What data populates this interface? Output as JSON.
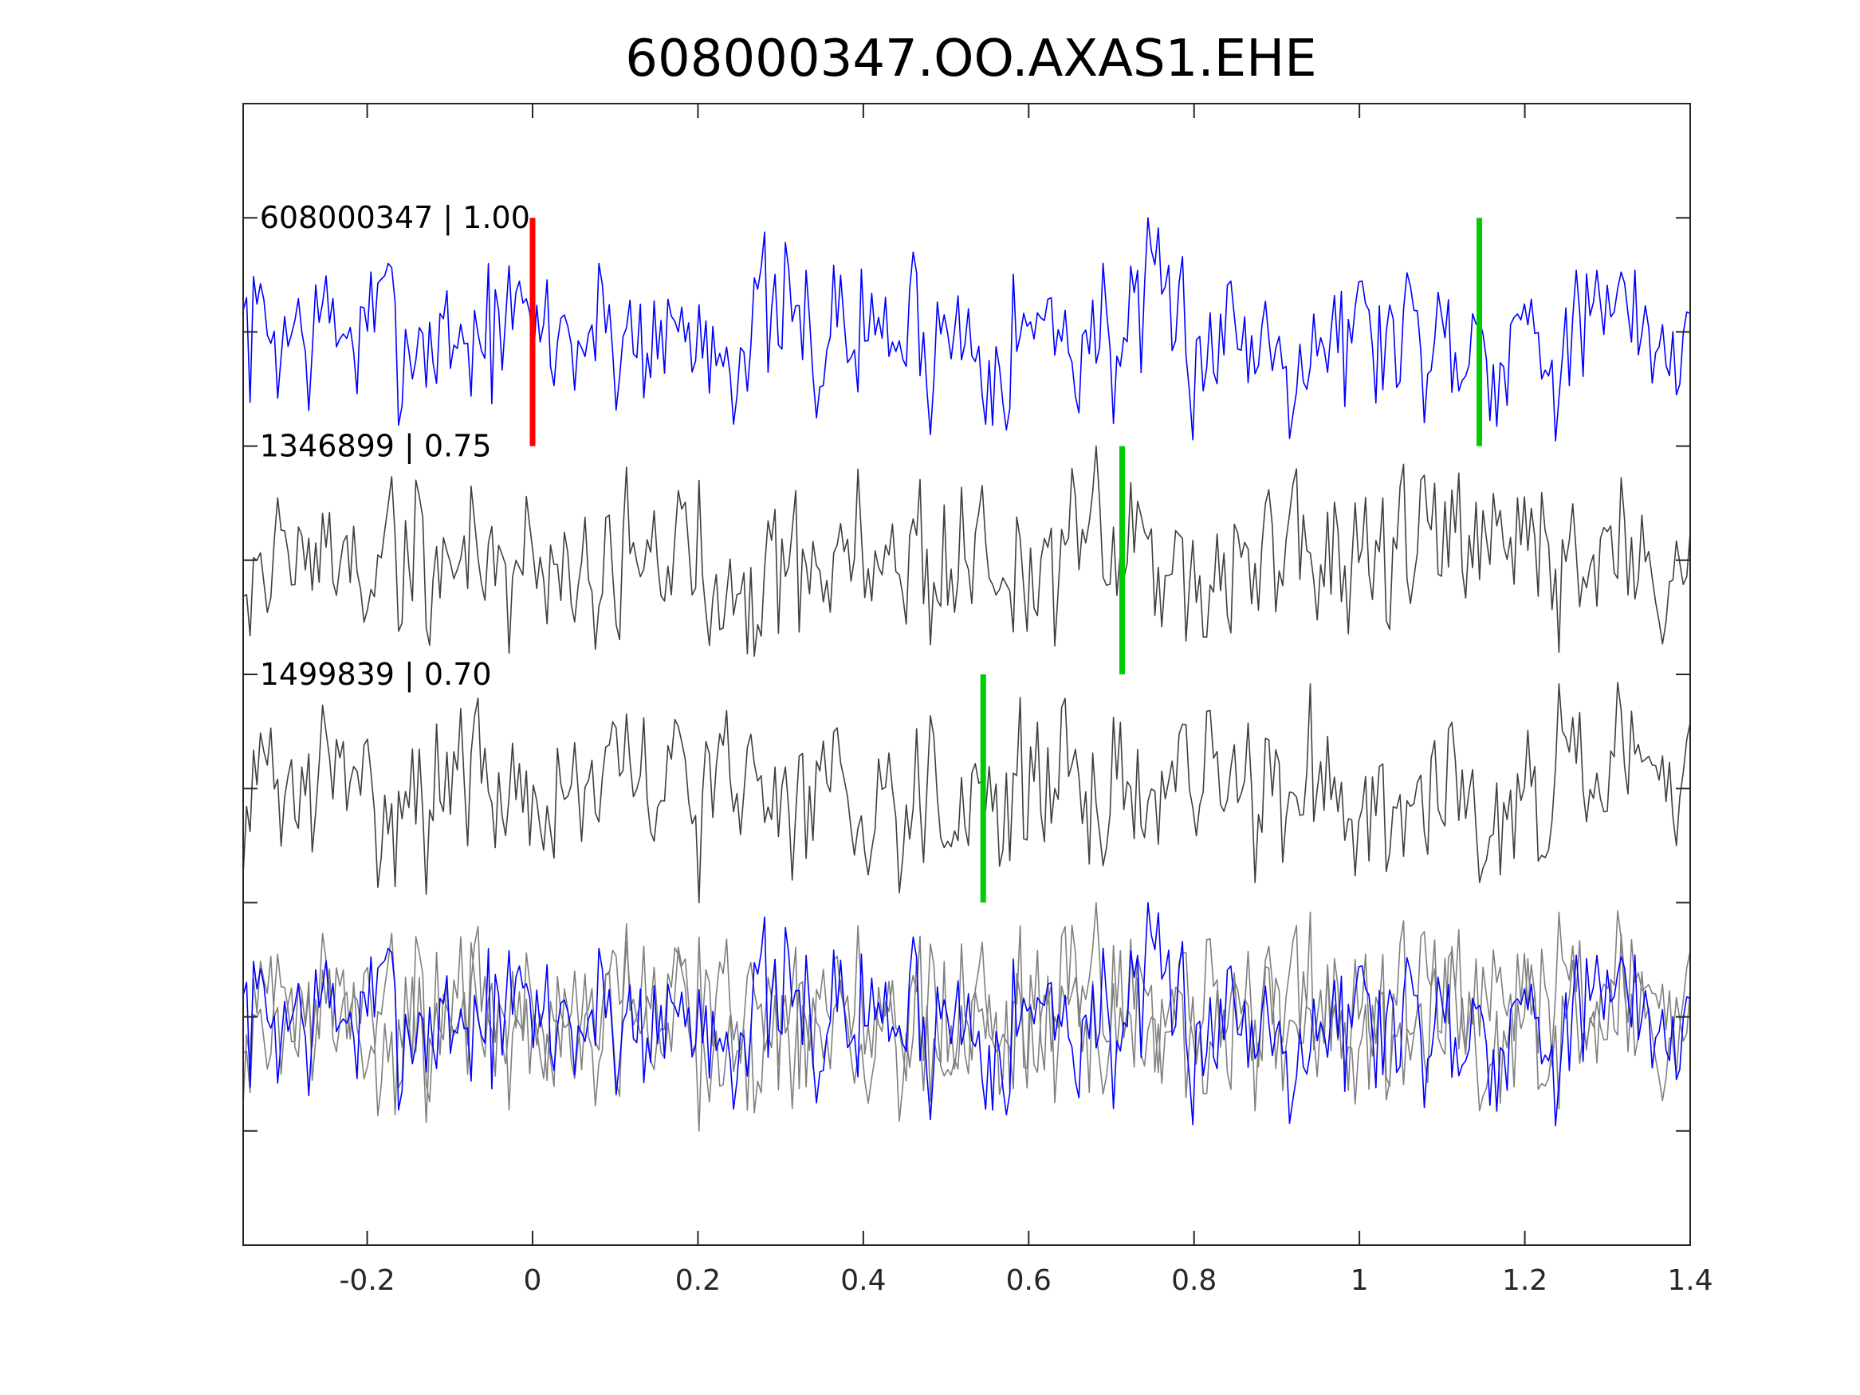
{
  "chart_data": {
    "type": "line",
    "title": "608000347.OO.AXAS1.EHE",
    "xlabel": "",
    "ylabel": "",
    "xlim": [
      -0.35,
      1.4
    ],
    "x_ticks": [
      -0.2,
      0,
      0.2,
      0.4,
      0.6,
      0.8,
      1,
      1.2,
      1.4
    ],
    "x_tick_labels": [
      "-0.2",
      "0",
      "0.2",
      "0.4",
      "0.6",
      "0.8",
      "1",
      "1.2",
      "1.4"
    ],
    "grid": false,
    "legend": "none",
    "sample_count": 420,
    "series": [
      {
        "label": "608000347 | 1.00",
        "color": "#0000ff",
        "offset": 4,
        "amplitude": 0.5,
        "seed": 7,
        "picks": [
          {
            "x": 0.0,
            "color": "#ff0000"
          },
          {
            "x": 1.145,
            "color": "#00cc00"
          }
        ]
      },
      {
        "label": "1346899 | 0.75",
        "color": "#404040",
        "offset": 3,
        "amplitude": 0.5,
        "seed": 19,
        "picks": [
          {
            "x": 0.713,
            "color": "#00cc00"
          }
        ]
      },
      {
        "label": "1499839 | 0.70",
        "color": "#404040",
        "offset": 2,
        "amplitude": 0.5,
        "seed": 31,
        "picks": [
          {
            "x": 0.545,
            "color": "#00cc00"
          }
        ]
      }
    ],
    "overlay": {
      "offset": 1,
      "under_color": "#808080",
      "top_color": "#0000ff"
    }
  }
}
